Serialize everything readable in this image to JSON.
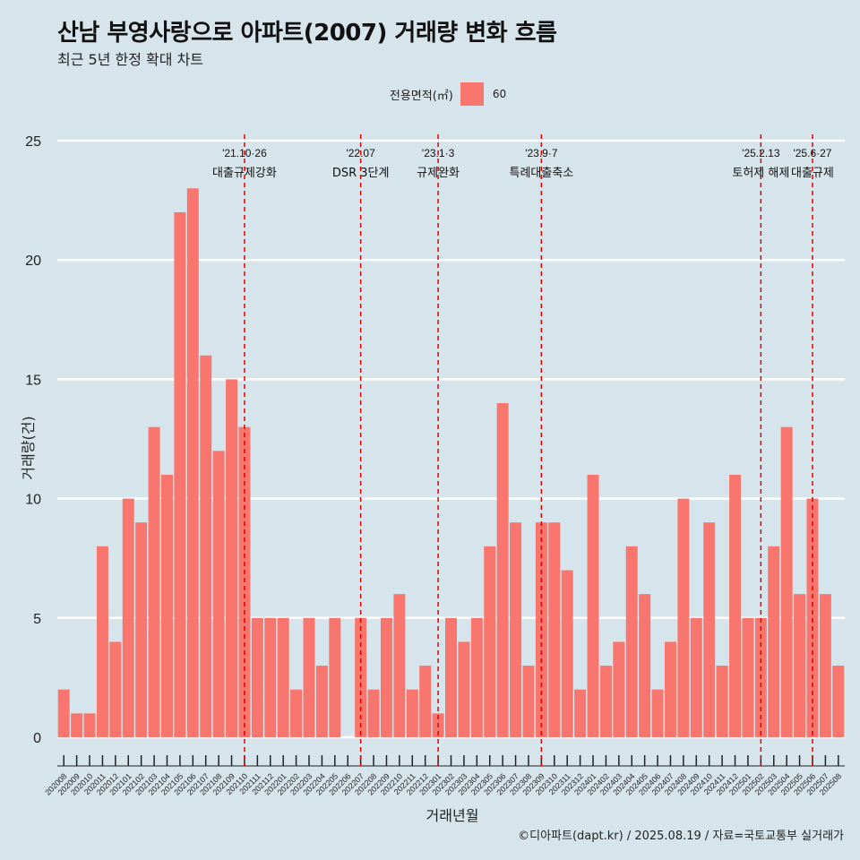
{
  "header": {
    "title": "산남 부영사랑으로 아파트(2007) 거래량 변화 흐름",
    "subtitle": "최근 5년 한정 확대 차트"
  },
  "legend": {
    "title": "전용면적(㎡)",
    "label": "60",
    "color": "#f8766d"
  },
  "caption": "©디아파트(dapt.kr) / 2025.08.19 / 자료=국토교통부 실거래가",
  "chart_data": {
    "type": "bar",
    "title": "산남 부영사랑으로 아파트(2007) 거래량 변화 흐름",
    "subtitle": "최근 5년 한정 확대 차트",
    "xlabel": "거래년월",
    "ylabel": "거래량(건)",
    "ylim": [
      0,
      25
    ],
    "yticks": [
      0,
      5,
      10,
      15,
      20,
      25
    ],
    "grid": true,
    "legend_position": "top",
    "categories": [
      "202008",
      "202009",
      "202010",
      "202011",
      "202012",
      "202101",
      "202102",
      "202103",
      "202104",
      "202105",
      "202106",
      "202107",
      "202108",
      "202109",
      "202110",
      "202111",
      "202112",
      "202201",
      "202202",
      "202203",
      "202204",
      "202205",
      "202206",
      "202207",
      "202208",
      "202209",
      "202210",
      "202211",
      "202212",
      "202301",
      "202302",
      "202303",
      "202304",
      "202305",
      "202306",
      "202307",
      "202308",
      "202309",
      "202310",
      "202311",
      "202312",
      "202401",
      "202402",
      "202403",
      "202404",
      "202405",
      "202406",
      "202407",
      "202408",
      "202409",
      "202410",
      "202411",
      "202412",
      "202501",
      "202502",
      "202503",
      "202504",
      "202505",
      "202506",
      "202507",
      "202508"
    ],
    "series": [
      {
        "name": "60",
        "color": "#f8766d",
        "values": [
          2,
          1,
          1,
          8,
          4,
          10,
          9,
          13,
          11,
          22,
          23,
          16,
          12,
          15,
          13,
          5,
          5,
          5,
          2,
          5,
          3,
          5,
          0,
          5,
          2,
          5,
          6,
          2,
          3,
          1,
          5,
          4,
          5,
          8,
          14,
          9,
          3,
          9,
          9,
          7,
          2,
          11,
          3,
          4,
          8,
          6,
          2,
          4,
          10,
          5,
          9,
          3,
          11,
          5,
          5,
          8,
          13,
          6,
          10,
          6,
          3
        ]
      }
    ],
    "annotations": [
      {
        "category": "202110",
        "date": "'21.10·26",
        "text": "대출규제강화"
      },
      {
        "category": "202207",
        "date": "'22.07",
        "text": "DSR 3단계"
      },
      {
        "category": "202301",
        "date": "'23.1·3",
        "text": "규제완화"
      },
      {
        "category": "202309",
        "date": "'23.9·7",
        "text": "특례대출축소"
      },
      {
        "category": "202502",
        "date": "'25.2.13",
        "text": "토허제 해제"
      },
      {
        "category": "202506",
        "date": "'25.6·27",
        "text": "대출규제"
      }
    ]
  }
}
